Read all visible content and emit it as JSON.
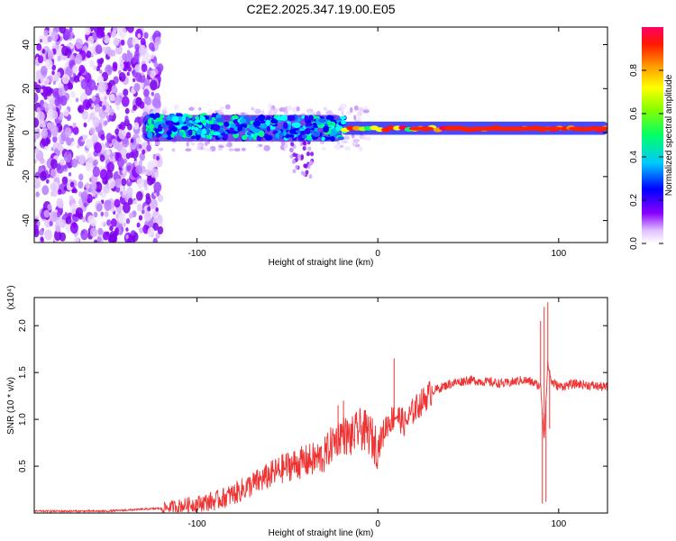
{
  "title": "C2E2.2025.347.19.00.E05",
  "chart_data": [
    {
      "type": "heatmap",
      "xlabel": "Height of straight line (km)",
      "ylabel": "Frequency (Hz)",
      "xlim": [
        -190,
        127
      ],
      "ylim": [
        -50,
        48
      ],
      "xticks": [
        -100,
        0,
        100
      ],
      "yticks": [
        -40,
        -20,
        0,
        20,
        40
      ],
      "colorbar": {
        "label": "Normalized spectral amplitude",
        "range": [
          0.0,
          1.0
        ],
        "ticks": [
          "0.0",
          "0.2",
          "0.4",
          "0.6",
          "0.8"
        ],
        "colors": [
          "#ffffff",
          "#9a00ff",
          "#0000ff",
          "#00ffff",
          "#00ff00",
          "#ffff00",
          "#ff8800",
          "#ff0000",
          "#ff0066"
        ]
      },
      "description_regions": [
        {
          "x": [
            -190,
            -120
          ],
          "freq": [
            -50,
            48
          ],
          "amplitude": 0.15
        },
        {
          "x": [
            -130,
            -20
          ],
          "freq": [
            -8,
            12
          ],
          "amplitude": 0.35
        },
        {
          "x": [
            -20,
            127
          ],
          "freq": [
            -1,
            5
          ],
          "amplitude": 0.95
        }
      ]
    },
    {
      "type": "line",
      "xlabel": "Height of straight line (km)",
      "ylabel": "SNR (10 * v/v)",
      "y_multiplier": "(x10⁴)",
      "xlim": [
        -190,
        127
      ],
      "ylim": [
        0,
        2.3
      ],
      "xticks": [
        -100,
        0,
        100
      ],
      "yticks": [
        "0.5",
        "1.0",
        "1.5",
        "2.0"
      ],
      "series": [
        {
          "name": "SNR",
          "color": "#ee3333",
          "x": [
            -190,
            -150,
            -120,
            -100,
            -90,
            -80,
            -70,
            -60,
            -50,
            -40,
            -30,
            -25,
            -20,
            -15,
            -10,
            -5,
            0,
            5,
            10,
            15,
            20,
            25,
            30,
            40,
            50,
            60,
            70,
            80,
            85,
            90,
            92,
            94,
            96,
            100,
            110,
            127
          ],
          "y": [
            0.02,
            0.02,
            0.05,
            0.1,
            0.13,
            0.2,
            0.3,
            0.4,
            0.5,
            0.55,
            0.6,
            0.75,
            0.85,
            0.8,
            0.9,
            0.85,
            0.7,
            0.95,
            1.05,
            0.95,
            1.1,
            1.2,
            1.3,
            1.38,
            1.42,
            1.4,
            1.38,
            1.42,
            1.4,
            1.35,
            0.8,
            1.6,
            1.4,
            1.35,
            1.38,
            1.34
          ]
        }
      ],
      "spikes": [
        {
          "x": -22,
          "y": 1.15
        },
        {
          "x": -19,
          "y": 1.2
        },
        {
          "x": 9,
          "y": 1.65
        },
        {
          "x": 90,
          "y": 2.05
        },
        {
          "x": 91,
          "y": 0.1
        },
        {
          "x": 92,
          "y": 2.2
        },
        {
          "x": 93,
          "y": 0.12
        },
        {
          "x": 94,
          "y": 2.25
        },
        {
          "x": 95,
          "y": 0.9
        }
      ]
    }
  ]
}
